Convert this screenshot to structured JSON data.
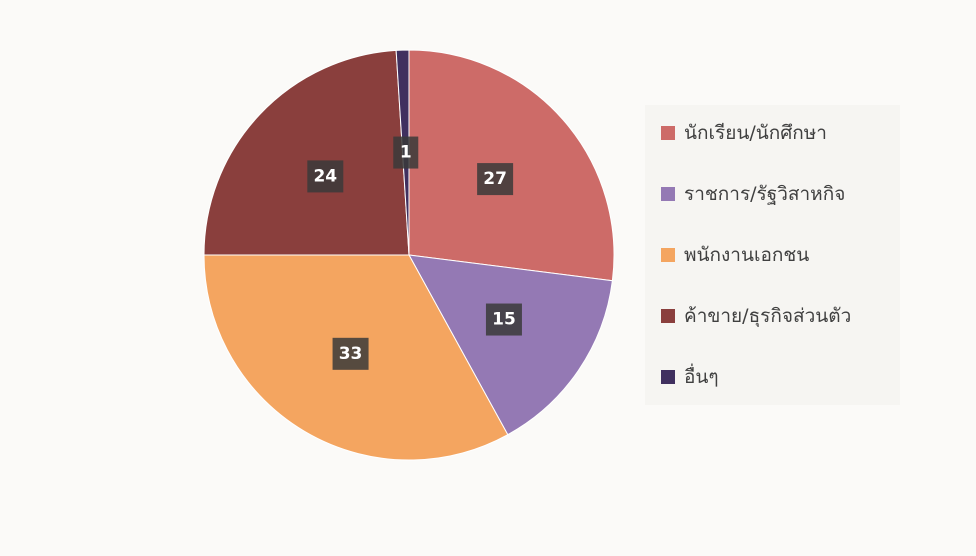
{
  "chart_data": {
    "type": "pie",
    "categories": [
      "นักเรียน/นักศึกษา",
      "ราชการ/รัฐวิสาหกิจ",
      "พนักงานเอกชน",
      "ค้าขาย/ธุรกิจส่วนตัว",
      "อื่นๆ"
    ],
    "values": [
      27,
      15,
      33,
      24,
      1
    ],
    "colors": [
      "#cd6b68",
      "#9479b4",
      "#f4a560",
      "#8a3f3d",
      "#40305f"
    ],
    "legend": "right"
  }
}
